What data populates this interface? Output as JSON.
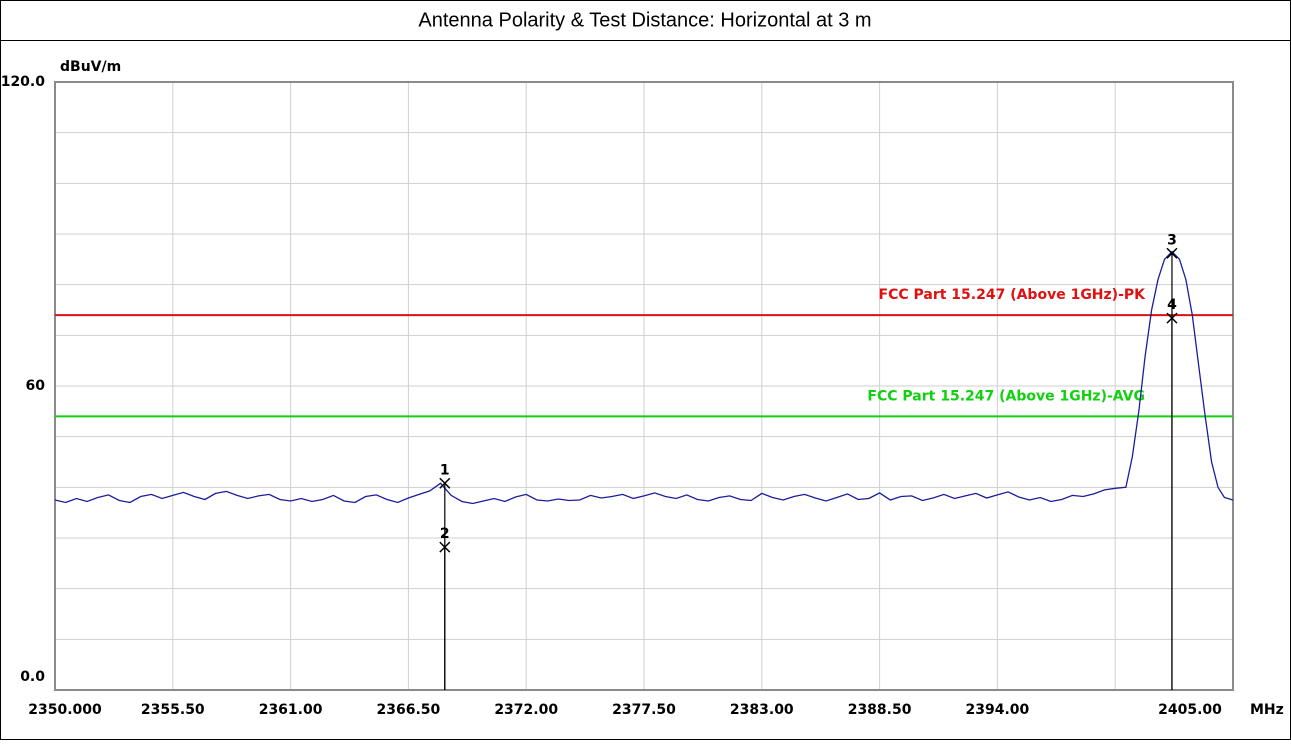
{
  "chart_data": {
    "type": "line",
    "title": "Antenna Polarity & Test Distance: Horizontal at 3 m",
    "y_unit": "dBuV/m",
    "x_unit": "MHz",
    "xlim": [
      2350,
      2405
    ],
    "ylim": [
      0,
      120
    ],
    "xticks": [
      {
        "value": 2350,
        "label": "2350.000"
      },
      {
        "value": 2355.5,
        "label": "2355.50"
      },
      {
        "value": 2361,
        "label": "2361.00"
      },
      {
        "value": 2366.5,
        "label": "2366.50"
      },
      {
        "value": 2372,
        "label": "2372.00"
      },
      {
        "value": 2377.5,
        "label": "2377.50"
      },
      {
        "value": 2383,
        "label": "2383.00"
      },
      {
        "value": 2388.5,
        "label": "2388.50"
      },
      {
        "value": 2394,
        "label": "2394.00"
      },
      {
        "value": 2399.5,
        "label": null
      },
      {
        "value": 2405,
        "label": "2405.00"
      }
    ],
    "yticks": [
      {
        "value": 0,
        "label": "0.0"
      },
      {
        "value": 10,
        "label": null
      },
      {
        "value": 20,
        "label": null
      },
      {
        "value": 30,
        "label": null
      },
      {
        "value": 40,
        "label": null
      },
      {
        "value": 50,
        "label": null
      },
      60,
      {
        "value": 70,
        "label": null
      },
      {
        "value": 80,
        "label": null
      },
      {
        "value": 90,
        "label": null
      },
      {
        "value": 100,
        "label": null
      },
      {
        "value": 110,
        "label": null
      },
      {
        "value": 120,
        "label": "120.0"
      }
    ],
    "grid": true,
    "limit_lines": [
      {
        "name": "FCC Part 15.247 (Above 1GHz)-PK",
        "value": 74,
        "color": "#e01010"
      },
      {
        "name": "FCC Part 15.247 (Above 1GHz)-AVG",
        "value": 54,
        "color": "#10d010"
      }
    ],
    "series": [
      {
        "color": "#1c1c9c",
        "x": [
          2350,
          2350.5,
          2351,
          2351.5,
          2352,
          2352.5,
          2353,
          2353.5,
          2354,
          2354.5,
          2355,
          2355.5,
          2356,
          2356.5,
          2357,
          2357.5,
          2358,
          2358.5,
          2359,
          2359.5,
          2360,
          2360.5,
          2361,
          2361.5,
          2362,
          2362.5,
          2363,
          2363.5,
          2364,
          2364.5,
          2365,
          2365.5,
          2366,
          2366.5,
          2367,
          2367.5,
          2368,
          2368.5,
          2369,
          2369.5,
          2370,
          2370.5,
          2371,
          2371.5,
          2372,
          2372.5,
          2373,
          2373.5,
          2374,
          2374.5,
          2375,
          2375.5,
          2376,
          2376.5,
          2377,
          2377.5,
          2378,
          2378.5,
          2379,
          2379.5,
          2380,
          2380.5,
          2381,
          2381.5,
          2382,
          2382.5,
          2383,
          2383.5,
          2384,
          2384.5,
          2385,
          2385.5,
          2386,
          2386.5,
          2387,
          2387.5,
          2388,
          2388.5,
          2389,
          2389.5,
          2390,
          2390.5,
          2391,
          2391.5,
          2392,
          2392.5,
          2393,
          2393.5,
          2394,
          2394.5,
          2395,
          2395.5,
          2396,
          2396.5,
          2397,
          2397.5,
          2398,
          2398.5,
          2399,
          2399.5,
          2400,
          2400.3,
          2400.6,
          2400.9,
          2401.2,
          2401.5,
          2401.8,
          2402.15,
          2402.5,
          2402.8,
          2403.1,
          2403.4,
          2403.7,
          2404,
          2404.3,
          2404.6,
          2405
        ],
        "values": [
          37.5,
          37,
          37.8,
          37.2,
          38,
          38.5,
          37.4,
          37,
          38.2,
          38.6,
          37.8,
          38.4,
          39,
          38.2,
          37.6,
          38.8,
          39.2,
          38.4,
          37.8,
          38.3,
          38.6,
          37.6,
          37.3,
          37.8,
          37.2,
          37.6,
          38.4,
          37.3,
          37,
          38.2,
          38.5,
          37.6,
          37,
          37.9,
          38.6,
          39.3,
          40.8,
          38.4,
          37.2,
          36.8,
          37.3,
          37.8,
          37.2,
          38.1,
          38.6,
          37.5,
          37.3,
          37.7,
          37.4,
          37.5,
          38.4,
          37.9,
          38.2,
          38.6,
          37.8,
          38.3,
          38.9,
          38.2,
          37.8,
          38.5,
          37.6,
          37.3,
          38,
          38.3,
          37.6,
          37.4,
          38.8,
          38,
          37.5,
          38.2,
          38.6,
          37.9,
          37.3,
          38,
          38.7,
          37.6,
          37.8,
          38.9,
          37.5,
          38.2,
          38.3,
          37.4,
          37.9,
          38.6,
          37.8,
          38.3,
          38.8,
          37.9,
          38.5,
          39.1,
          38.1,
          37.5,
          38,
          37.2,
          37.6,
          38.4,
          38.2,
          38.7,
          39.5,
          39.8,
          40,
          46,
          55,
          66,
          75,
          81,
          85,
          86.5,
          85,
          81,
          74,
          64,
          54,
          45,
          40,
          38,
          37.5
        ]
      }
    ],
    "markers": [
      {
        "label": "1",
        "x": 2368.2,
        "y": 40.8
      },
      {
        "label": "2",
        "x": 2368.2,
        "y": 28.2
      },
      {
        "label": "3",
        "x": 2402.15,
        "y": 86.2
      },
      {
        "label": "4",
        "x": 2402.15,
        "y": 73.4
      }
    ]
  }
}
